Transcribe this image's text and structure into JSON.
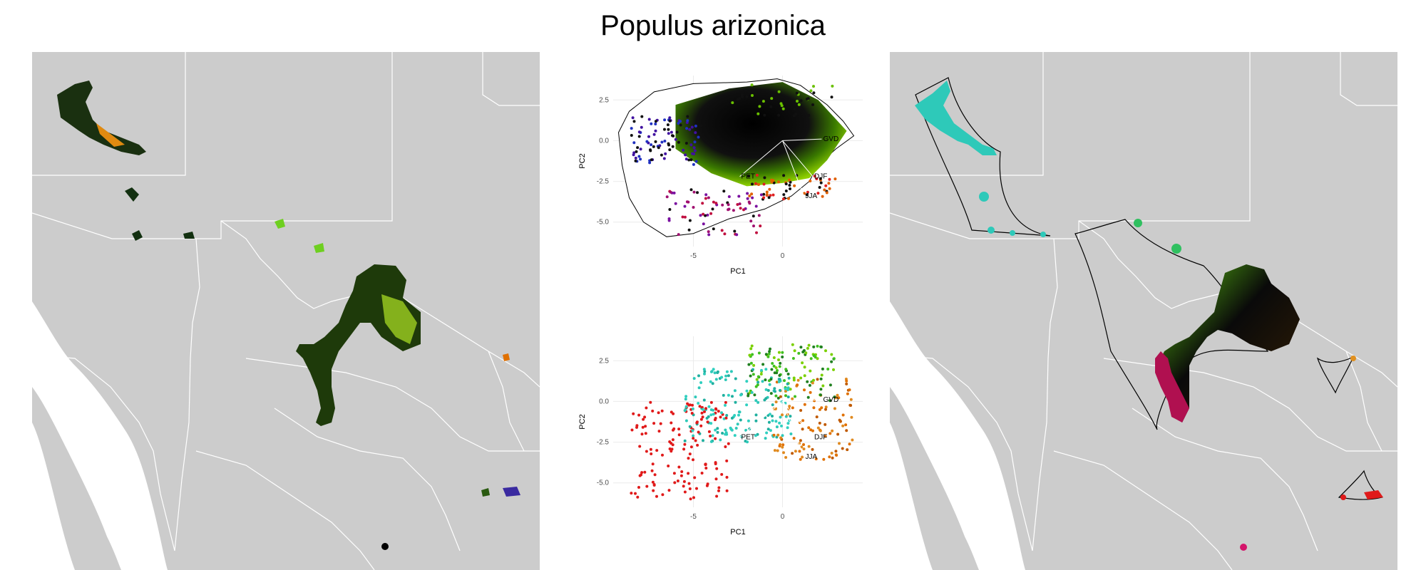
{
  "title": "Populus arizonica",
  "colors": {
    "map_land": "#cccccc",
    "borders": "#ffffff",
    "green": "#7ec300",
    "orange": "#e07800",
    "teal": "#2ec9b9",
    "red": "#e01a1a",
    "magenta": "#d4146a",
    "purple": "#6a1fc0",
    "blue": "#2030c0"
  },
  "chart_data": [
    {
      "type": "scatter",
      "panel": "pca-top",
      "xlabel": "PC1",
      "ylabel": "PC2",
      "x_ticks": [
        -5,
        0
      ],
      "y_ticks": [
        2.5,
        0.0,
        -2.5,
        -5.0
      ],
      "xlim": [
        -9.5,
        4.5
      ],
      "ylim": [
        -6.5,
        4
      ],
      "grid": true,
      "vectors": [
        {
          "label": "GVD",
          "x": 2.2,
          "y": 0.1
        },
        {
          "label": "DJF",
          "x": 1.7,
          "y": -2.2
        },
        {
          "label": "JJA",
          "x": 1.2,
          "y": -3.4
        },
        {
          "label": "PET",
          "x": -2.4,
          "y": -2.2
        }
      ]
    },
    {
      "type": "scatter",
      "panel": "pca-bottom",
      "xlabel": "PC1",
      "ylabel": "PC2",
      "x_ticks": [
        -5,
        0
      ],
      "y_ticks": [
        2.5,
        0.0,
        -2.5,
        -5.0
      ],
      "xlim": [
        -9.5,
        4.5
      ],
      "ylim": [
        -6.5,
        4
      ],
      "grid": true,
      "vectors": [
        {
          "label": "GVD",
          "x": 2.2,
          "y": 0.1
        },
        {
          "label": "DJF",
          "x": 1.7,
          "y": -2.2
        },
        {
          "label": "JJA",
          "x": 1.2,
          "y": -3.4
        },
        {
          "label": "PET",
          "x": -2.4,
          "y": -2.2
        }
      ]
    }
  ]
}
